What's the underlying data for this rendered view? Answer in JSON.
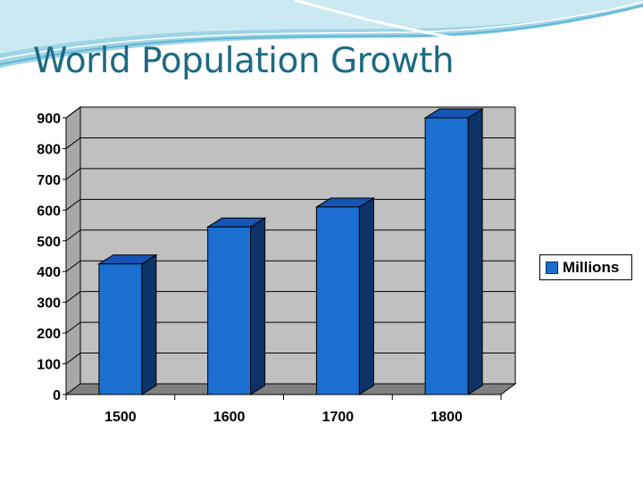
{
  "slide": {
    "title": "World Population Growth"
  },
  "chart_data": {
    "type": "bar",
    "categories": [
      "1500",
      "1600",
      "1700",
      "1800"
    ],
    "series": [
      {
        "name": "Millions",
        "values": [
          425,
          545,
          610,
          900
        ]
      }
    ],
    "ylim": [
      0,
      900
    ],
    "yticks": [
      "0",
      "100",
      "200",
      "300",
      "400",
      "500",
      "600",
      "700",
      "800",
      "900"
    ],
    "grid": true,
    "legend_position": "right",
    "colors": {
      "bar_front": "#1a6fd0",
      "bar_top": "#1655b3",
      "bar_side": "#0d3368",
      "wall": "#c0c0c0",
      "floor": "#808080"
    }
  }
}
